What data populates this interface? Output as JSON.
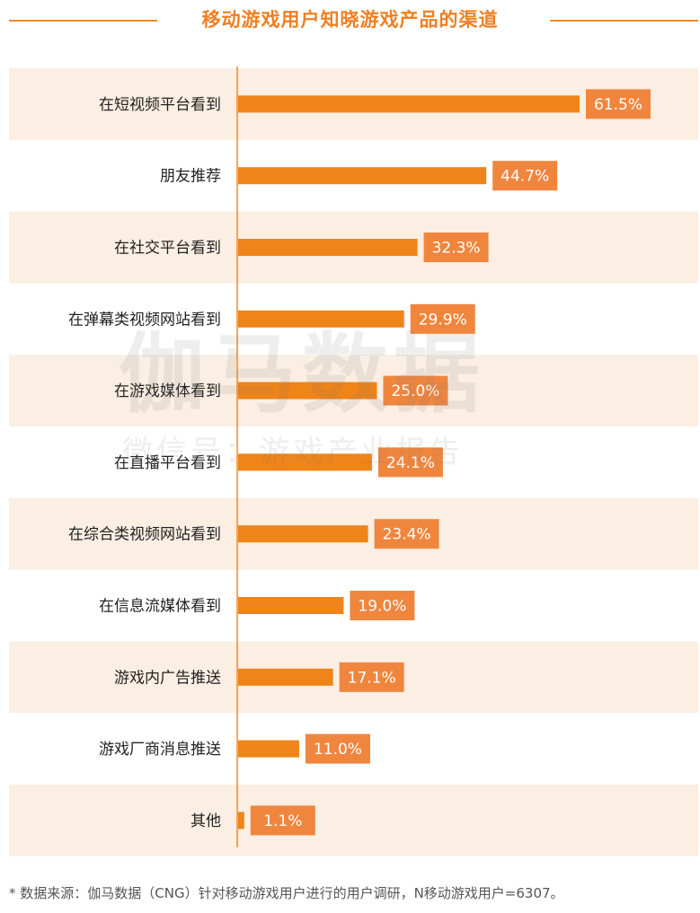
{
  "title": "移动游戏用户知晓游戏产品的渠道",
  "chart_data": {
    "type": "bar",
    "orientation": "horizontal",
    "categories": [
      "在短视频平台看到",
      "朋友推荐",
      "在社交平台看到",
      "在弹幕类视频网站看到",
      "在游戏媒体看到",
      "在直播平台看到",
      "在综合类视频网站看到",
      "在信息流媒体看到",
      "游戏内广告推送",
      "游戏厂商消息推送",
      "其他"
    ],
    "values": [
      61.5,
      44.7,
      32.3,
      29.9,
      25.0,
      24.1,
      23.4,
      19.0,
      17.1,
      11.0,
      1.1
    ],
    "value_labels": [
      "61.5%",
      "44.7%",
      "32.3%",
      "29.9%",
      "25.0%",
      "24.1%",
      "23.4%",
      "19.0%",
      "17.1%",
      "11.0%",
      "1.1%"
    ],
    "xlim": [
      0,
      61.5
    ],
    "unit": "%",
    "grid": false,
    "legend": "none",
    "colors": {
      "bar": "#ef8418",
      "label_box": "#f0863e",
      "row_band": "#fbeee3",
      "axis": "#ef8a2b",
      "title": "#ef7f22"
    }
  },
  "watermark": {
    "main": "伽马数据",
    "sub": "微信号：游戏产业报告"
  },
  "footnote": "* 数据来源：伽马数据（CNG）针对移动游戏用户进行的用户调研，N移动游戏用户=6307。"
}
